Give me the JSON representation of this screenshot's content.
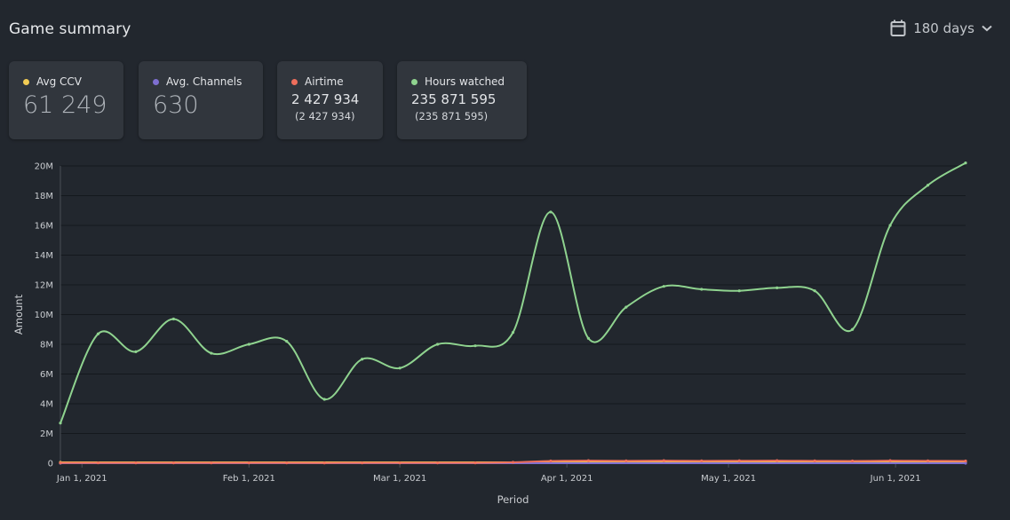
{
  "header": {
    "title": "Game summary",
    "range_label": "180 days"
  },
  "icons": {
    "calendar": "calendar-icon",
    "dropdown": "chevron-down-icon"
  },
  "cards": [
    {
      "label": "Avg CCV",
      "color": "#f2cc54",
      "value": "61 249",
      "sub": ""
    },
    {
      "label": "Avg. Channels",
      "color": "#7e6fd1",
      "value": "630",
      "sub": ""
    },
    {
      "label": "Airtime",
      "color": "#ee6e5c",
      "value": "2 427 934",
      "sub": "(2 427 934)"
    },
    {
      "label": "Hours watched",
      "color": "#8fd38f",
      "value": "235 871 595",
      "sub": "(235 871 595)"
    }
  ],
  "chart_data": {
    "type": "line",
    "xlabel": "Period",
    "ylabel": "Amount",
    "ylim": [
      0,
      20000000
    ],
    "yticks": [
      "0",
      "2M",
      "4M",
      "6M",
      "8M",
      "10M",
      "12M",
      "14M",
      "16M",
      "18M",
      "20M"
    ],
    "xlim": [
      "2020-12-28",
      "2021-06-14"
    ],
    "xticks": [
      {
        "date": "2021-01-01",
        "label": "Jan 1, 2021"
      },
      {
        "date": "2021-02-01",
        "label": "Feb 1, 2021"
      },
      {
        "date": "2021-03-01",
        "label": "Mar 1, 2021"
      },
      {
        "date": "2021-04-01",
        "label": "Apr 1, 2021"
      },
      {
        "date": "2021-05-01",
        "label": "May 1, 2021"
      },
      {
        "date": "2021-06-01",
        "label": "Jun 1, 2021"
      }
    ],
    "grid": true,
    "series": [
      {
        "name": "Hours watched",
        "color": "#8fd38f",
        "x": [
          "2020-12-28",
          "2021-01-04",
          "2021-01-11",
          "2021-01-18",
          "2021-01-25",
          "2021-02-01",
          "2021-02-08",
          "2021-02-15",
          "2021-02-22",
          "2021-03-01",
          "2021-03-08",
          "2021-03-15",
          "2021-03-22",
          "2021-03-29",
          "2021-04-05",
          "2021-04-12",
          "2021-04-19",
          "2021-04-26",
          "2021-05-03",
          "2021-05-10",
          "2021-05-17",
          "2021-05-24",
          "2021-05-31",
          "2021-06-07",
          "2021-06-14"
        ],
        "y": [
          2700000,
          8700000,
          7500000,
          9700000,
          7400000,
          8000000,
          8200000,
          4300000,
          7000000,
          6400000,
          8000000,
          7900000,
          8800000,
          16900000,
          8400000,
          10500000,
          11900000,
          11700000,
          11600000,
          11800000,
          11600000,
          9000000,
          16000000,
          18700000,
          20200000
        ]
      },
      {
        "name": "Airtime",
        "color": "#ee6e5c",
        "x": [
          "2020-12-28",
          "2021-01-04",
          "2021-01-11",
          "2021-01-18",
          "2021-01-25",
          "2021-02-01",
          "2021-02-08",
          "2021-02-15",
          "2021-02-22",
          "2021-03-01",
          "2021-03-08",
          "2021-03-15",
          "2021-03-22",
          "2021-03-29",
          "2021-04-05",
          "2021-04-12",
          "2021-04-19",
          "2021-04-26",
          "2021-05-03",
          "2021-05-10",
          "2021-05-17",
          "2021-05-24",
          "2021-05-31",
          "2021-06-07",
          "2021-06-14"
        ],
        "y": [
          20000,
          25000,
          22000,
          24000,
          20000,
          22000,
          21000,
          18000,
          20000,
          19000,
          21000,
          22000,
          60000,
          150000,
          170000,
          160000,
          170000,
          160000,
          165000,
          170000,
          160000,
          150000,
          170000,
          160000,
          150000
        ]
      },
      {
        "name": "Avg. Channels",
        "color": "#7e6fd1",
        "x": [
          "2020-12-28",
          "2021-06-14"
        ],
        "y": [
          600,
          700
        ]
      },
      {
        "name": "Avg CCV",
        "color": "#f2cc54",
        "x": [
          "2020-12-28",
          "2021-06-14"
        ],
        "y": [
          60000,
          62000
        ]
      }
    ]
  }
}
